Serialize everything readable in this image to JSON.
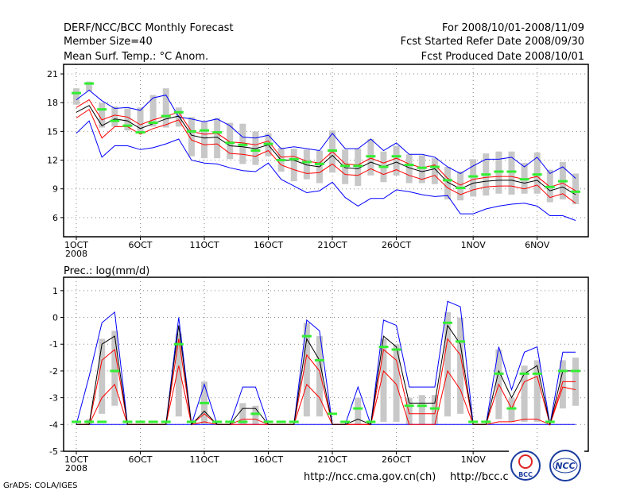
{
  "header": {
    "title": "DERF/NCC/BCC Monthly Forecast",
    "member_size": "Member Size=40",
    "variable": "Mean Surf. Temp.: °C Anom.",
    "period": "For 2008/10/01-2008/11/09",
    "started": "Fcst Started Refer Date 2008/09/30",
    "produced": "Fcst Produced Date 2008/10/01"
  },
  "footer": {
    "grads": "GrADS: COLA/IGES",
    "url1": "http://ncc.cma.gov.cn(ch)",
    "url2": "http://bcc.c",
    "logo1": "BCC",
    "logo2": "NCC"
  },
  "colors": {
    "mean": "#000000",
    "inner": "#ff0000",
    "outer": "#0000ff",
    "bar": "#c8c8c8",
    "marker": "#33ee33",
    "grid": "#888888"
  },
  "chart_data": [
    {
      "type": "line",
      "title": "Mean Surf. Temp.: °C Anom.",
      "ylim": [
        4,
        22
      ],
      "yticks": [
        6,
        9,
        12,
        15,
        18,
        21
      ],
      "xticks": [
        {
          "day": 1,
          "label": "1OCT"
        },
        {
          "day": 6,
          "label": "6OCT"
        },
        {
          "day": 11,
          "label": "11OCT"
        },
        {
          "day": 16,
          "label": "16OCT"
        },
        {
          "day": 21,
          "label": "21OCT"
        },
        {
          "day": 26,
          "label": "26OCT"
        },
        {
          "day": 32,
          "label": "1NOV"
        },
        {
          "day": 37,
          "label": "6NOV"
        }
      ],
      "year_label": "2008",
      "x_range": [
        1,
        40
      ],
      "mean": [
        17.0,
        17.7,
        15.6,
        16.3,
        16.1,
        15.3,
        15.8,
        16.3,
        16.6,
        14.6,
        14.3,
        14.4,
        13.5,
        13.4,
        13.2,
        13.6,
        12.0,
        12.0,
        11.5,
        11.3,
        12.5,
        11.2,
        11.1,
        11.8,
        11.3,
        11.8,
        11.2,
        10.8,
        11.1,
        9.7,
        9.0,
        9.6,
        9.8,
        9.9,
        9.9,
        9.6,
        9.9,
        8.8,
        9.2,
        8.4
      ],
      "red_upper": [
        17.5,
        18.3,
        16.2,
        16.7,
        16.5,
        15.7,
        16.2,
        16.6,
        17.0,
        15.0,
        14.7,
        14.8,
        13.9,
        13.8,
        13.6,
        14.0,
        12.3,
        12.4,
        11.9,
        11.7,
        12.9,
        11.6,
        11.5,
        12.2,
        11.7,
        12.2,
        11.6,
        11.2,
        11.5,
        10.1,
        9.4,
        10.0,
        10.2,
        10.3,
        10.3,
        10.0,
        10.3,
        9.2,
        9.6,
        8.8
      ],
      "red_lower": [
        16.4,
        17.3,
        14.3,
        15.5,
        15.5,
        14.7,
        15.3,
        15.7,
        16.2,
        14.1,
        13.6,
        13.7,
        12.7,
        12.6,
        12.4,
        13.0,
        11.5,
        11.0,
        10.6,
        10.7,
        11.6,
        10.5,
        10.4,
        11.1,
        10.5,
        11.0,
        10.4,
        10.0,
        10.4,
        9.1,
        8.4,
        8.9,
        9.2,
        9.3,
        9.3,
        9.0,
        9.4,
        8.1,
        8.5,
        7.5
      ],
      "blue_upper": [
        18.3,
        19.3,
        18.2,
        17.4,
        17.5,
        17.2,
        18.5,
        18.8,
        16.5,
        16.3,
        16.0,
        16.3,
        15.6,
        14.4,
        14.3,
        14.6,
        13.2,
        13.4,
        13.2,
        13.0,
        14.8,
        13.2,
        13.2,
        14.2,
        13.0,
        13.8,
        12.6,
        12.6,
        12.3,
        11.3,
        10.6,
        11.4,
        12.1,
        12.1,
        12.3,
        11.3,
        12.3,
        10.6,
        11.3,
        10.1
      ],
      "blue_lower": [
        14.8,
        16.1,
        12.3,
        13.5,
        13.5,
        13.1,
        13.3,
        13.7,
        14.2,
        12.0,
        11.7,
        11.6,
        11.2,
        10.9,
        10.8,
        11.7,
        10.0,
        9.3,
        8.6,
        8.8,
        9.7,
        8.1,
        7.2,
        8.0,
        8.0,
        8.9,
        8.7,
        8.4,
        8.2,
        8.3,
        6.4,
        6.4,
        6.9,
        7.2,
        7.4,
        7.5,
        7.2,
        6.2,
        6.2,
        5.7
      ],
      "bars_top": [
        19.5,
        20.2,
        18.0,
        17.6,
        17.4,
        17.5,
        18.8,
        19.5,
        17.5,
        16.5,
        16.0,
        16.4,
        15.9,
        15.8,
        15.0,
        14.8,
        13.3,
        13.2,
        13.1,
        13.0,
        15.1,
        13.1,
        13.2,
        14.2,
        12.9,
        13.5,
        12.6,
        12.5,
        12.2,
        11.3,
        10.8,
        12.1,
        12.7,
        12.9,
        12.9,
        11.7,
        12.8,
        11.0,
        11.8,
        10.6
      ],
      "bars_bottom": [
        17.8,
        19.2,
        15.4,
        15.5,
        15.1,
        14.8,
        15.5,
        15.4,
        15.5,
        12.4,
        12.2,
        12.2,
        12.1,
        11.6,
        11.5,
        12.4,
        10.8,
        9.8,
        10.0,
        9.6,
        10.7,
        9.5,
        9.3,
        10.4,
        9.7,
        10.4,
        9.6,
        9.6,
        9.5,
        7.9,
        7.8,
        8.2,
        8.3,
        8.5,
        8.4,
        8.5,
        8.5,
        7.6,
        7.9,
        7.4
      ],
      "markers": [
        19.0,
        20.0,
        17.3,
        16.1,
        15.6,
        14.9,
        15.9,
        16.6,
        17.0,
        15.0,
        15.1,
        14.9,
        13.8,
        13.6,
        13.0,
        13.7,
        12.0,
        12.1,
        11.8,
        11.6,
        13.0,
        11.4,
        11.4,
        12.4,
        11.3,
        12.4,
        11.5,
        11.2,
        11.3,
        9.9,
        9.1,
        10.3,
        10.5,
        10.8,
        10.8,
        10.0,
        10.5,
        9.2,
        9.8,
        8.7
      ]
    },
    {
      "type": "line",
      "title": "Prec.: log(mm/d)",
      "ylim": [
        -5,
        1.5
      ],
      "yticks": [
        -5,
        -4,
        -3,
        -2,
        -1,
        0,
        1
      ],
      "xticks": [
        {
          "day": 1,
          "label": "1OCT"
        },
        {
          "day": 6,
          "label": "6OCT"
        },
        {
          "day": 11,
          "label": "11OCT"
        },
        {
          "day": 16,
          "label": "16OCT"
        },
        {
          "day": 21,
          "label": "21OCT"
        },
        {
          "day": 26,
          "label": "26OCT"
        },
        {
          "day": 32,
          "label": "1NOV"
        },
        {
          "day": 37,
          "label": "6NOV"
        }
      ],
      "year_label": "2008",
      "x_range": [
        1,
        40
      ],
      "mean": [
        -4.0,
        -4.0,
        -1.0,
        -0.7,
        -4.0,
        -4.0,
        -4.0,
        -4.0,
        -0.3,
        -4.0,
        -3.5,
        -4.0,
        -4.0,
        -3.4,
        -3.4,
        -4.0,
        -4.0,
        -4.0,
        -0.8,
        -1.6,
        -4.0,
        -4.0,
        -3.8,
        -4.0,
        -0.7,
        -1.1,
        -3.2,
        -3.2,
        -3.2,
        -0.3,
        -1.0,
        -4.0,
        -4.0,
        -2.0,
        -3.0,
        -2.1,
        -1.8,
        -4.0,
        -2.0,
        -2.0
      ],
      "red_upper": [
        -4.0,
        -4.0,
        -1.6,
        -1.2,
        -4.0,
        -4.0,
        -4.0,
        -4.0,
        -0.8,
        -4.0,
        -3.6,
        -4.0,
        -4.0,
        -3.8,
        -3.8,
        -4.0,
        -4.0,
        -4.0,
        -1.4,
        -2.0,
        -4.0,
        -4.0,
        -4.0,
        -4.0,
        -1.2,
        -1.6,
        -3.6,
        -3.6,
        -3.6,
        -0.8,
        -1.4,
        -4.0,
        -4.0,
        -2.5,
        -3.4,
        -2.4,
        -2.2,
        -4.0,
        -2.4,
        -2.4
      ],
      "red_lower": [
        -4.0,
        -4.0,
        -3.0,
        -2.5,
        -4.0,
        -4.0,
        -4.0,
        -4.0,
        -1.8,
        -4.0,
        -3.9,
        -4.0,
        -4.0,
        -4.0,
        -4.0,
        -4.0,
        -4.0,
        -4.0,
        -2.5,
        -3.0,
        -4.0,
        -4.0,
        -4.0,
        -4.0,
        -2.0,
        -2.5,
        -4.0,
        -4.0,
        -4.0,
        -2.0,
        -2.7,
        -4.0,
        -4.0,
        -3.9,
        -3.9,
        -3.8,
        -3.8,
        -4.0,
        -2.6,
        -2.7
      ],
      "blue_upper": [
        -4.0,
        -2.2,
        -0.2,
        0.2,
        -4.0,
        -4.0,
        -4.0,
        -4.0,
        0.0,
        -4.0,
        -2.5,
        -4.0,
        -4.0,
        -2.6,
        -2.6,
        -4.0,
        -4.0,
        -4.0,
        -0.1,
        -0.5,
        -4.0,
        -4.0,
        -2.6,
        -4.0,
        -0.1,
        -0.3,
        -2.6,
        -2.6,
        -2.6,
        0.6,
        0.4,
        -4.0,
        -4.0,
        -1.1,
        -2.7,
        -1.3,
        -1.1,
        -4.0,
        -1.3,
        -1.3
      ],
      "blue_lower": [
        -4.0,
        -4.0,
        -4.0,
        -4.0,
        -4.0,
        -4.0,
        -4.0,
        -4.0,
        -4.0,
        -4.0,
        -4.0,
        -4.0,
        -4.0,
        -4.0,
        -4.0,
        -4.0,
        -4.0,
        -4.0,
        -4.0,
        -4.0,
        -4.0,
        -4.0,
        -4.0,
        -4.0,
        -4.0,
        -4.0,
        -4.0,
        -4.0,
        -4.0,
        -4.0,
        -4.0,
        -4.0,
        -4.0,
        -4.0,
        -4.0,
        -4.0,
        -4.0,
        -4.0,
        -4.0,
        -4.0
      ],
      "bars_top": [
        -4.0,
        -3.8,
        -0.8,
        -0.5,
        -4.0,
        -4.0,
        -4.0,
        -4.0,
        -0.6,
        -4.0,
        -2.4,
        -4.0,
        -4.0,
        -3.2,
        -3.3,
        -4.0,
        -4.0,
        -4.0,
        -0.2,
        -0.7,
        -4.0,
        -4.0,
        -3.0,
        -4.0,
        -0.8,
        -1.0,
        -3.0,
        -2.9,
        -2.9,
        0.2,
        0.0,
        -4.0,
        -4.0,
        -1.2,
        -3.0,
        -1.8,
        -1.6,
        -4.0,
        -1.6,
        -1.5
      ],
      "bars_bottom": [
        -4.0,
        -4.0,
        -3.6,
        -3.3,
        -4.0,
        -4.0,
        -4.0,
        -4.0,
        -3.7,
        -4.0,
        -4.0,
        -4.0,
        -4.0,
        -4.0,
        -4.0,
        -4.0,
        -4.0,
        -4.0,
        -3.7,
        -3.7,
        -4.0,
        -4.0,
        -4.0,
        -4.0,
        -3.9,
        -3.9,
        -4.0,
        -4.0,
        -4.0,
        -3.7,
        -3.6,
        -4.0,
        -4.0,
        -3.8,
        -3.9,
        -3.9,
        -3.9,
        -4.0,
        -3.4,
        -3.3
      ],
      "markers": [
        -3.9,
        -3.9,
        -3.9,
        -2.0,
        -3.9,
        -3.9,
        -3.9,
        -3.9,
        -1.0,
        -3.9,
        -3.2,
        -3.9,
        -3.9,
        -3.9,
        -3.6,
        -3.9,
        -3.9,
        -3.9,
        -0.7,
        -1.6,
        -3.6,
        -3.9,
        -3.4,
        -3.9,
        -1.1,
        -1.2,
        -3.3,
        -3.3,
        -3.4,
        -0.2,
        -0.9,
        -3.9,
        -3.9,
        -2.1,
        -3.4,
        -2.1,
        -2.1,
        -3.9,
        -2.0,
        -2.0
      ]
    }
  ]
}
